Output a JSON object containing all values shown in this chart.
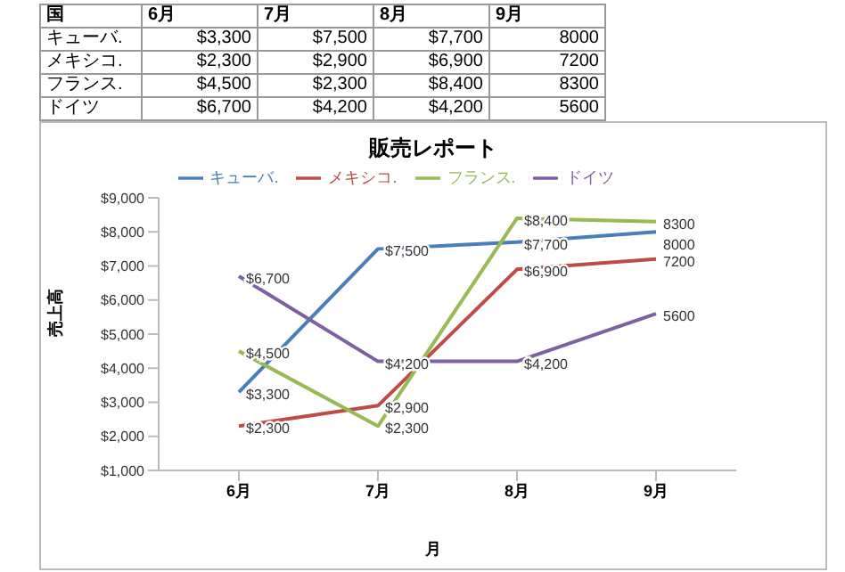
{
  "chart_data": {
    "type": "line",
    "title": "販売レポート",
    "xlabel": "月",
    "ylabel": "売上高",
    "annotations": [
      "国"
    ],
    "categories": [
      "6月",
      "7月",
      "8月",
      "9月"
    ],
    "series": [
      {
        "name": "キューバ.",
        "color": "#4a7ebb",
        "values": [
          3300,
          7500,
          7700,
          8000
        ],
        "value_labels": [
          "$3,300",
          "$7,500",
          "$7,700",
          "8000"
        ]
      },
      {
        "name": "メキシコ.",
        "color": "#be4b48",
        "values": [
          2300,
          2900,
          6900,
          7200
        ],
        "value_labels": [
          "$2,300",
          "$2,900",
          "$6,900",
          "7200"
        ]
      },
      {
        "name": "フランス.",
        "color": "#98b954",
        "values": [
          4500,
          2300,
          8400,
          8300
        ],
        "value_labels": [
          "$4,500",
          "$2,300",
          "$8,400",
          "8300"
        ]
      },
      {
        "name": "ドイツ",
        "color": "#7d60a0",
        "values": [
          6700,
          4200,
          4200,
          5600
        ],
        "value_labels": [
          "$6,700",
          "$4,200",
          "$4,200",
          "5600"
        ]
      }
    ],
    "ylim": [
      1000,
      9000
    ],
    "yticks": [
      {
        "value": 1000,
        "label": "$1,000"
      },
      {
        "value": 2000,
        "label": "$2,000"
      },
      {
        "value": 3000,
        "label": "$3,000"
      },
      {
        "value": 4000,
        "label": "$4,000"
      },
      {
        "value": 5000,
        "label": "$5,000"
      },
      {
        "value": 6000,
        "label": "$6,000"
      },
      {
        "value": 7000,
        "label": "$7,000"
      },
      {
        "value": 8000,
        "label": "$8,000"
      },
      {
        "value": 9000,
        "label": "$9,000"
      }
    ],
    "grid": false,
    "legend": "top",
    "marker": "none",
    "line_style": "solid"
  }
}
